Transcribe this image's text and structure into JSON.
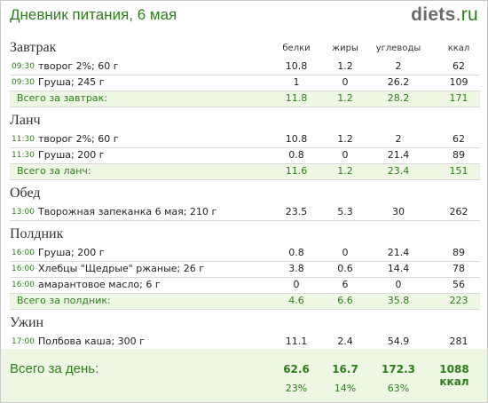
{
  "header": {
    "title": "Дневник питания, 6 мая",
    "logo_main": "diets",
    "logo_tld": ".ru"
  },
  "columns": [
    "белки",
    "жиры",
    "углеводы",
    "ккал"
  ],
  "meals": [
    {
      "title": "Завтрак",
      "items": [
        {
          "time": "09:30",
          "name": "творог 2%; 60 г",
          "protein": "10.8",
          "fat": "1.2",
          "carbs": "2",
          "kcal": "62"
        },
        {
          "time": "09:30",
          "name": "Груша; 245 г",
          "protein": "1",
          "fat": "0",
          "carbs": "26.2",
          "kcal": "109"
        }
      ],
      "total": {
        "label": "Всего за завтрак:",
        "protein": "11.8",
        "fat": "1.2",
        "carbs": "28.2",
        "kcal": "171"
      }
    },
    {
      "title": "Ланч",
      "items": [
        {
          "time": "11:30",
          "name": "творог 2%; 60 г",
          "protein": "10.8",
          "fat": "1.2",
          "carbs": "2",
          "kcal": "62"
        },
        {
          "time": "11:30",
          "name": "Груша; 200 г",
          "protein": "0.8",
          "fat": "0",
          "carbs": "21.4",
          "kcal": "89"
        }
      ],
      "total": {
        "label": "Всего за ланч:",
        "protein": "11.6",
        "fat": "1.2",
        "carbs": "23.4",
        "kcal": "151"
      }
    },
    {
      "title": "Обед",
      "items": [
        {
          "time": "13:00",
          "name": "Творожная запеканка 6 мая; 210 г",
          "protein": "23.5",
          "fat": "5.3",
          "carbs": "30",
          "kcal": "262"
        }
      ]
    },
    {
      "title": "Полдник",
      "items": [
        {
          "time": "16:00",
          "name": "Груша; 200 г",
          "protein": "0.8",
          "fat": "0",
          "carbs": "21.4",
          "kcal": "89"
        },
        {
          "time": "16:00",
          "name": "Хлебцы \"Щедрые\" ржаные; 26 г",
          "protein": "3.8",
          "fat": "0.6",
          "carbs": "14.4",
          "kcal": "78"
        },
        {
          "time": "16:00",
          "name": "амарантовое масло; 6 г",
          "protein": "0",
          "fat": "6",
          "carbs": "0",
          "kcal": "56"
        }
      ],
      "total": {
        "label": "Всего за полдник:",
        "protein": "4.6",
        "fat": "6.6",
        "carbs": "35.8",
        "kcal": "223"
      }
    },
    {
      "title": "Ужин",
      "items": [
        {
          "time": "17:00",
          "name": "Полбова каша; 300 г",
          "protein": "11.1",
          "fat": "2.4",
          "carbs": "54.9",
          "kcal": "281"
        }
      ]
    }
  ],
  "day_total": {
    "label": "Всего за день:",
    "protein": "62.6",
    "fat": "16.7",
    "carbs": "172.3",
    "kcal": "1088 ккал",
    "protein_pct": "23%",
    "fat_pct": "14%",
    "carbs_pct": "63%"
  },
  "colors": {
    "accent_green": "#2f7d1a",
    "total_bg": "#eef6e4",
    "logo_gray": "#6a6a6a"
  }
}
